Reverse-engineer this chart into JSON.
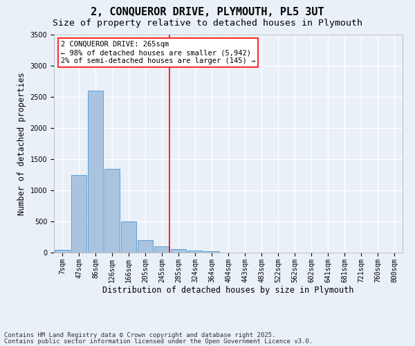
{
  "title": "2, CONQUEROR DRIVE, PLYMOUTH, PL5 3UT",
  "subtitle": "Size of property relative to detached houses in Plymouth",
  "xlabel": "Distribution of detached houses by size in Plymouth",
  "ylabel": "Number of detached properties",
  "categories": [
    "7sqm",
    "47sqm",
    "86sqm",
    "126sqm",
    "166sqm",
    "205sqm",
    "245sqm",
    "285sqm",
    "324sqm",
    "364sqm",
    "404sqm",
    "443sqm",
    "483sqm",
    "522sqm",
    "562sqm",
    "602sqm",
    "641sqm",
    "681sqm",
    "721sqm",
    "760sqm",
    "800sqm"
  ],
  "values": [
    50,
    1250,
    2600,
    1350,
    500,
    200,
    100,
    55,
    30,
    20,
    0,
    0,
    0,
    0,
    0,
    0,
    0,
    0,
    0,
    0,
    0
  ],
  "bar_color": "#aac4e0",
  "bar_edge_color": "#5a9fd4",
  "background_color": "#eaf0f8",
  "grid_color": "#ffffff",
  "ylim": [
    0,
    3500
  ],
  "yticks": [
    0,
    500,
    1000,
    1500,
    2000,
    2500,
    3000,
    3500
  ],
  "annotation_line1": "2 CONQUEROR DRIVE: 265sqm",
  "annotation_line2": "← 98% of detached houses are smaller (5,942)",
  "annotation_line3": "2% of semi-detached houses are larger (145) →",
  "footnote1": "Contains HM Land Registry data © Crown copyright and database right 2025.",
  "footnote2": "Contains public sector information licensed under the Open Government Licence v3.0.",
  "title_fontsize": 11,
  "subtitle_fontsize": 9.5,
  "axis_label_fontsize": 8.5,
  "tick_fontsize": 7,
  "annotation_fontsize": 7.5,
  "footnote_fontsize": 6.5,
  "red_line_bar_index": 6.47
}
